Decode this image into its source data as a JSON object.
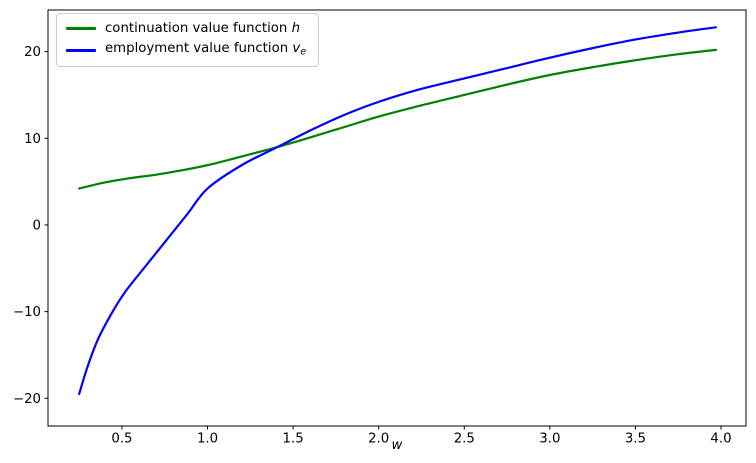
{
  "chart_data": {
    "type": "line",
    "title": "",
    "xlabel": "w",
    "ylabel": "",
    "xlim": [
      0.068,
      4.146
    ],
    "ylim": [
      -23.2,
      24.8
    ],
    "xticks": [
      0.5,
      1.0,
      1.5,
      2.0,
      2.5,
      3.0,
      3.5,
      4.0
    ],
    "xtick_labels": [
      "0.5",
      "1.0",
      "1.5",
      "2.0",
      "2.5",
      "3.0",
      "3.5",
      "4.0"
    ],
    "yticks": [
      -20,
      -10,
      0,
      10,
      20
    ],
    "ytick_labels": [
      "−20",
      "−10",
      "0",
      "10",
      "20"
    ],
    "grid": false,
    "legend_position": "upper-left",
    "series": [
      {
        "name": "continuation value function h",
        "color": "#008000",
        "line_width": 2.2,
        "x": [
          0.25,
          0.4,
          0.55,
          0.7,
          0.85,
          1.0,
          1.2,
          1.41,
          1.6,
          1.8,
          2.0,
          2.25,
          2.5,
          2.75,
          3.0,
          3.25,
          3.5,
          3.75,
          3.97
        ],
        "y": [
          4.2,
          4.9,
          5.4,
          5.8,
          6.3,
          6.9,
          7.9,
          9.0,
          10.1,
          11.3,
          12.5,
          13.8,
          15.0,
          16.2,
          17.3,
          18.2,
          19.0,
          19.7,
          20.2
        ]
      },
      {
        "name": "employment value function v_e",
        "color": "#0000ff",
        "line_width": 2.2,
        "x": [
          0.25,
          0.3,
          0.36,
          0.44,
          0.52,
          0.62,
          0.75,
          0.88,
          1.0,
          1.2,
          1.41,
          1.6,
          1.8,
          2.0,
          2.25,
          2.5,
          2.75,
          3.0,
          3.25,
          3.5,
          3.75,
          3.97
        ],
        "y": [
          -19.5,
          -16.3,
          -13.2,
          -10.2,
          -7.7,
          -5.2,
          -2.0,
          1.2,
          4.2,
          6.9,
          9.0,
          10.9,
          12.7,
          14.2,
          15.7,
          16.9,
          18.1,
          19.3,
          20.4,
          21.4,
          22.2,
          22.8
        ]
      }
    ],
    "intersection": {
      "w": 1.41,
      "v": 9.0
    }
  },
  "legend": {
    "items": [
      {
        "text": "continuation value function ",
        "math": "h",
        "sub": ""
      },
      {
        "text": "employment value function ",
        "math": "v",
        "sub": "e"
      }
    ]
  },
  "colors": {
    "h_line": "#008000",
    "ve_line": "#0000ff",
    "spine": "#000000",
    "legend_border": "#cccccc",
    "background": "#ffffff"
  }
}
